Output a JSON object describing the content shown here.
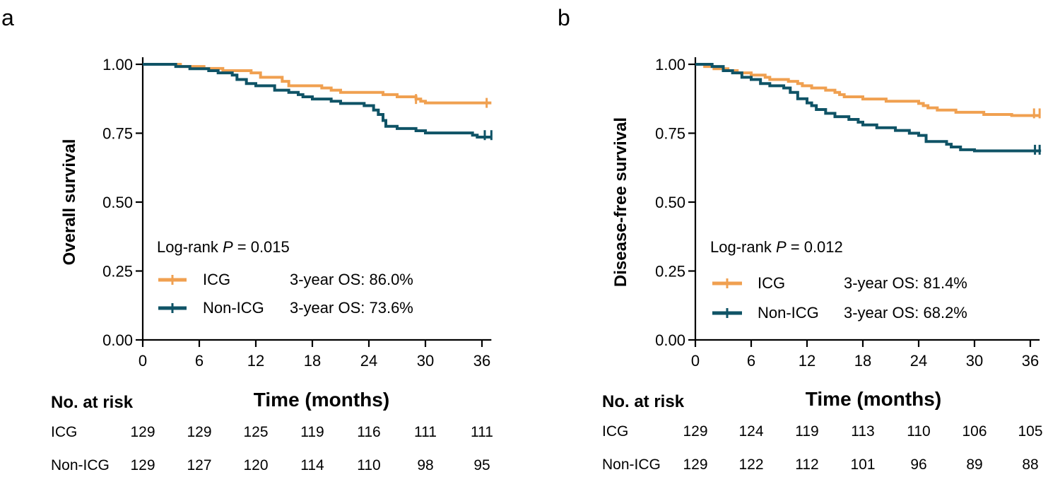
{
  "chart_data": [
    {
      "type": "line",
      "panel_label": "a",
      "ylabel": "Overall survival",
      "xlabel": "Time (months)",
      "xlim": [
        0,
        37
      ],
      "ylim": [
        0,
        1
      ],
      "x_ticks": [
        0,
        6,
        12,
        18,
        24,
        30,
        36
      ],
      "y_ticks": [
        "0.00",
        "0.25",
        "0.50",
        "0.75",
        "1.00"
      ],
      "logrank": {
        "prefix": "Log-rank ",
        "p": "P",
        "suffix": " = 0.015"
      },
      "series": [
        {
          "name": "ICG",
          "color": "#F0A050",
          "label_text": "3-year OS: 86.0%",
          "steps": [
            [
              0,
              1.0
            ],
            [
              4,
              0.992
            ],
            [
              6.5,
              0.985
            ],
            [
              8.5,
              0.977
            ],
            [
              11.5,
              0.969
            ],
            [
              12.5,
              0.953
            ],
            [
              14.8,
              0.938
            ],
            [
              15.5,
              0.922
            ],
            [
              19,
              0.914
            ],
            [
              20,
              0.906
            ],
            [
              21,
              0.898
            ],
            [
              25.5,
              0.89
            ],
            [
              27,
              0.882
            ],
            [
              29,
              0.874
            ],
            [
              29.5,
              0.866
            ],
            [
              30,
              0.86
            ],
            [
              37,
              0.86
            ]
          ],
          "censors": [
            [
              29,
              0.874
            ],
            [
              36.5,
              0.86
            ]
          ]
        },
        {
          "name": "Non-ICG",
          "color": "#0F5366",
          "label_text": "3-year OS: 73.6%",
          "steps": [
            [
              0,
              1.0
            ],
            [
              3.5,
              0.992
            ],
            [
              5,
              0.984
            ],
            [
              7,
              0.977
            ],
            [
              8,
              0.969
            ],
            [
              9.5,
              0.961
            ],
            [
              10,
              0.945
            ],
            [
              11,
              0.93
            ],
            [
              12,
              0.922
            ],
            [
              14,
              0.906
            ],
            [
              15.5,
              0.898
            ],
            [
              16.5,
              0.89
            ],
            [
              17,
              0.882
            ],
            [
              18,
              0.874
            ],
            [
              20,
              0.866
            ],
            [
              21,
              0.858
            ],
            [
              23.5,
              0.85
            ],
            [
              24.5,
              0.834
            ],
            [
              25,
              0.818
            ],
            [
              25.5,
              0.796
            ],
            [
              25.8,
              0.775
            ],
            [
              27,
              0.767
            ],
            [
              29,
              0.759
            ],
            [
              30,
              0.751
            ],
            [
              35,
              0.743
            ],
            [
              35.5,
              0.736
            ],
            [
              37,
              0.736
            ]
          ],
          "censors": [
            [
              36.3,
              0.743
            ],
            [
              37,
              0.743
            ]
          ]
        }
      ],
      "risk_table": {
        "header": "No. at risk",
        "rows": [
          {
            "label": "ICG",
            "values": [
              "129",
              "129",
              "125",
              "119",
              "116",
              "111",
              "111"
            ]
          },
          {
            "label": "Non-ICG",
            "values": [
              "129",
              "127",
              "120",
              "114",
              "110",
              "98",
              "95"
            ]
          }
        ]
      }
    },
    {
      "type": "line",
      "panel_label": "b",
      "ylabel": "Disease-free survival",
      "xlabel": "Time (months)",
      "xlim": [
        0,
        37
      ],
      "ylim": [
        0,
        1
      ],
      "x_ticks": [
        0,
        6,
        12,
        18,
        24,
        30,
        36
      ],
      "y_ticks": [
        "0.00",
        "0.25",
        "0.50",
        "0.75",
        "1.00"
      ],
      "logrank": {
        "prefix": "Log-rank ",
        "p": "P",
        "suffix": " = 0.012"
      },
      "series": [
        {
          "name": "ICG",
          "color": "#F0A050",
          "label_text": "3-year OS: 81.4%",
          "steps": [
            [
              0,
              1.0
            ],
            [
              1,
              0.992
            ],
            [
              2,
              0.984
            ],
            [
              3.5,
              0.977
            ],
            [
              4.5,
              0.969
            ],
            [
              6,
              0.961
            ],
            [
              7.5,
              0.953
            ],
            [
              8,
              0.945
            ],
            [
              10,
              0.938
            ],
            [
              11,
              0.93
            ],
            [
              11.5,
              0.922
            ],
            [
              12.5,
              0.914
            ],
            [
              14,
              0.906
            ],
            [
              15,
              0.898
            ],
            [
              15.5,
              0.89
            ],
            [
              16,
              0.882
            ],
            [
              18,
              0.874
            ],
            [
              20.5,
              0.866
            ],
            [
              24,
              0.858
            ],
            [
              24.5,
              0.85
            ],
            [
              25,
              0.842
            ],
            [
              26,
              0.834
            ],
            [
              28,
              0.826
            ],
            [
              31,
              0.818
            ],
            [
              34,
              0.814
            ],
            [
              37,
              0.814
            ]
          ],
          "censors": [
            [
              36.4,
              0.822
            ],
            [
              37,
              0.822
            ]
          ]
        },
        {
          "name": "Non-ICG",
          "color": "#0F5366",
          "label_text": "3-year OS: 68.2%",
          "steps": [
            [
              0,
              1.0
            ],
            [
              1.8,
              0.992
            ],
            [
              3,
              0.977
            ],
            [
              4,
              0.969
            ],
            [
              5,
              0.953
            ],
            [
              6,
              0.945
            ],
            [
              7,
              0.93
            ],
            [
              8,
              0.922
            ],
            [
              9.5,
              0.914
            ],
            [
              10.2,
              0.898
            ],
            [
              11,
              0.875
            ],
            [
              12,
              0.86
            ],
            [
              12.5,
              0.85
            ],
            [
              13,
              0.836
            ],
            [
              14,
              0.822
            ],
            [
              15,
              0.81
            ],
            [
              16.5,
              0.8
            ],
            [
              17.5,
              0.79
            ],
            [
              18,
              0.78
            ],
            [
              19.5,
              0.77
            ],
            [
              21.5,
              0.76
            ],
            [
              23,
              0.75
            ],
            [
              24,
              0.742
            ],
            [
              24.8,
              0.72
            ],
            [
              27,
              0.71
            ],
            [
              27.5,
              0.7
            ],
            [
              28.5,
              0.69
            ],
            [
              30,
              0.686
            ],
            [
              37,
              0.682
            ]
          ],
          "censors": [
            [
              36.5,
              0.69
            ],
            [
              37,
              0.69
            ]
          ]
        }
      ],
      "risk_table": {
        "header": "No. at risk",
        "rows": [
          {
            "label": "ICG",
            "values": [
              "129",
              "124",
              "119",
              "113",
              "110",
              "106",
              "105"
            ]
          },
          {
            "label": "Non-ICG",
            "values": [
              "129",
              "122",
              "112",
              "101",
              "96",
              "89",
              "88"
            ]
          }
        ]
      }
    }
  ]
}
